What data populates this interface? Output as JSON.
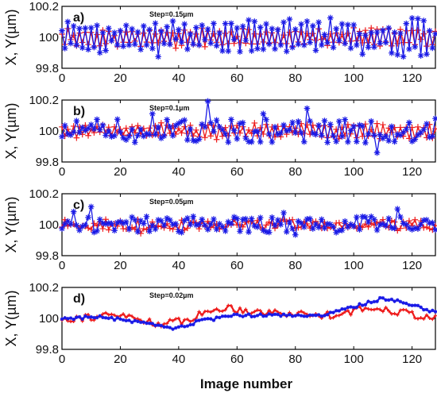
{
  "xlabel": "Image number",
  "chart_data": [
    {
      "type": "line",
      "panel_label": "a)",
      "annotation": "Step=0.15µm",
      "ylabel": "X, Y(µm)",
      "xlim": [
        0,
        128
      ],
      "ylim": [
        99.8,
        100.2
      ],
      "x_ticks": [
        "0",
        "20",
        "40",
        "60",
        "80",
        "100",
        "120"
      ],
      "y_ticks": [
        "99.8",
        "100",
        "100.2"
      ],
      "series": [
        {
          "color": "#ee1c1c",
          "marker": "plus",
          "amplitude": 0.055,
          "seed": 11,
          "pattern": "zigzag"
        },
        {
          "color": "#1a1ae6",
          "marker": "asterisk",
          "amplitude": 0.1,
          "seed": 23,
          "pattern": "zigzag"
        }
      ]
    },
    {
      "type": "line",
      "panel_label": "b)",
      "annotation": "Step=0.1µm",
      "ylabel": "X, Y(µm)",
      "xlim": [
        0,
        128
      ],
      "ylim": [
        99.8,
        100.2
      ],
      "x_ticks": [
        "0",
        "20",
        "40",
        "60",
        "80",
        "100",
        "120"
      ],
      "y_ticks": [
        "99.8",
        "100",
        "100.2"
      ],
      "series": [
        {
          "color": "#ee1c1c",
          "marker": "plus",
          "amplitude": 0.045,
          "seed": 37,
          "pattern": "zigzag"
        },
        {
          "color": "#1a1ae6",
          "marker": "asterisk",
          "amplitude": 0.075,
          "seed": 51,
          "pattern": "noise"
        }
      ]
    },
    {
      "type": "line",
      "panel_label": "c)",
      "annotation": "Step=0.05µm",
      "ylabel": "X, Y(µm)",
      "xlim": [
        0,
        128
      ],
      "ylim": [
        99.8,
        100.2
      ],
      "x_ticks": [
        "0",
        "20",
        "40",
        "60",
        "80",
        "100",
        "120"
      ],
      "y_ticks": [
        "99.8",
        "100",
        "100.2"
      ],
      "series": [
        {
          "color": "#ee1c1c",
          "marker": "plus",
          "amplitude": 0.035,
          "seed": 63,
          "pattern": "noise"
        },
        {
          "color": "#1a1ae6",
          "marker": "asterisk",
          "amplitude": 0.055,
          "seed": 77,
          "pattern": "noise"
        }
      ]
    },
    {
      "type": "line",
      "panel_label": "d)",
      "annotation": "Step=0.02µm",
      "ylabel": "X, Y(µm)",
      "xlabel": "Image number",
      "xlim": [
        0,
        128
      ],
      "ylim": [
        99.8,
        100.2
      ],
      "x_ticks": [
        "0",
        "20",
        "40",
        "60",
        "80",
        "100",
        "120"
      ],
      "y_ticks": [
        "99.8",
        "100",
        "100.2"
      ],
      "series": [
        {
          "color": "#ee1c1c",
          "marker": "plus",
          "amplitude": 0.025,
          "seed": 91,
          "pattern": "drift",
          "trend": [
            [
              0,
              100.0
            ],
            [
              20,
              100.02
            ],
            [
              35,
              99.96
            ],
            [
              42,
              99.99
            ],
            [
              55,
              100.07
            ],
            [
              70,
              100.04
            ],
            [
              90,
              100.02
            ],
            [
              108,
              100.07
            ],
            [
              128,
              100.0
            ]
          ]
        },
        {
          "color": "#1a1ae6",
          "marker": "asterisk",
          "amplitude": 0.01,
          "seed": 103,
          "pattern": "drift",
          "trend": [
            [
              0,
              100.0
            ],
            [
              12,
              100.01
            ],
            [
              25,
              99.98
            ],
            [
              38,
              99.93
            ],
            [
              47,
              99.98
            ],
            [
              60,
              100.02
            ],
            [
              90,
              100.02
            ],
            [
              110,
              100.13
            ],
            [
              120,
              100.09
            ],
            [
              128,
              100.04
            ]
          ]
        }
      ]
    }
  ]
}
